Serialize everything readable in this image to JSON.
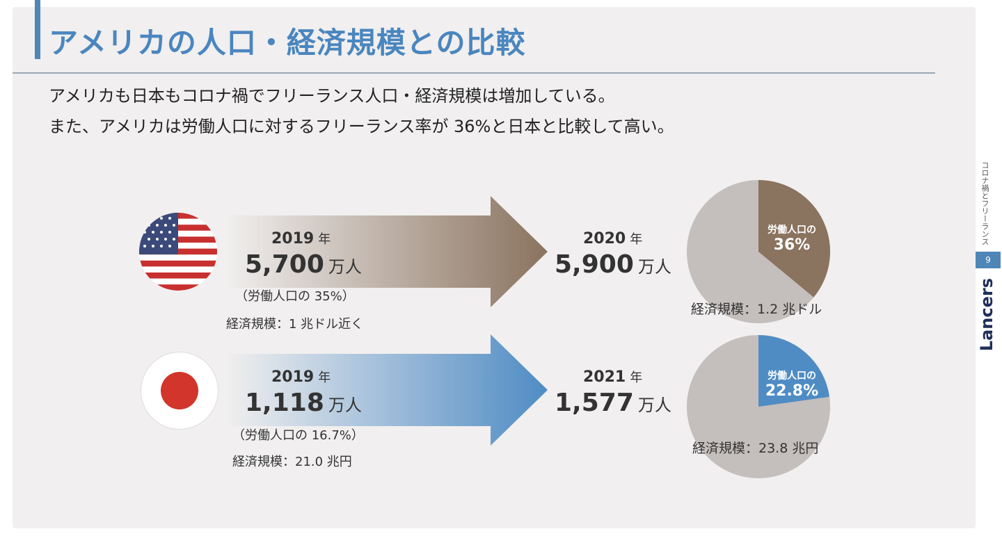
{
  "title": "アメリカの人口・経済規模との比較",
  "lead": [
    "アメリカも日本もコロナ禍でフリーランス人口・経済規模は増加している。",
    "また、アメリカは労働人口に対するフリーランス率が 36%と日本と比較して高い。"
  ],
  "usa": {
    "year_before": "2019",
    "year_unit": "年",
    "pop_before": "5,700",
    "pop_unit": "万人",
    "ratio_before": "（労働人口の 35%）",
    "econ_before": "経済規模：1 兆ドル近く",
    "year_after": "2020",
    "pop_after": "5,900",
    "pie_label": "労働人口の",
    "pie_value": "36%",
    "pie_share": 36,
    "econ_after": "経済規模：1.2 兆ドル",
    "color": "#8a735f"
  },
  "japan": {
    "year_before": "2019",
    "year_unit": "年",
    "pop_before": "1,118",
    "pop_unit": "万人",
    "ratio_before": "（労働人口の 16.7%）",
    "econ_before": "経済規模：21.0 兆円",
    "year_after": "2021",
    "pop_after": "1,577",
    "pie_label": "労働人口の",
    "pie_value": "22.8%",
    "pie_share": 22.8,
    "econ_after": "経済規模：23.8 兆円",
    "color": "#4f8cc4"
  },
  "side": {
    "label": "コロナ禍とフリーランス",
    "page": "9",
    "brand": "Lancers"
  }
}
